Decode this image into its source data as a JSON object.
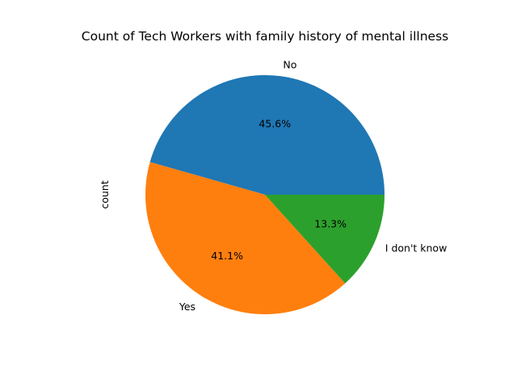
{
  "chart_data": {
    "type": "pie",
    "title": "Count of Tech Workers with family history of mental illness",
    "ylabel": "count",
    "xlabel": "",
    "start_angle_deg": 0,
    "direction": "counterclockwise",
    "slices": [
      {
        "label": "No",
        "pct_label": "45.6%",
        "value": 45.6,
        "color": "#1f77b4"
      },
      {
        "label": "Yes",
        "pct_label": "41.1%",
        "value": 41.1,
        "color": "#ff7f0e"
      },
      {
        "label": "I don't know",
        "pct_label": "13.3%",
        "value": 13.3,
        "color": "#2ca02c"
      }
    ]
  }
}
